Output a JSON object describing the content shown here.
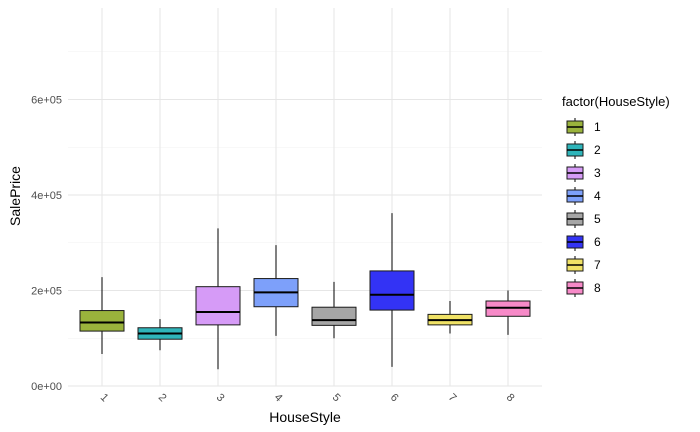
{
  "chart_data": {
    "type": "boxplot",
    "xlabel": "HouseStyle",
    "ylabel": "SalePrice",
    "ylim": [
      0,
      720000
    ],
    "grid": true,
    "legend_position": "right",
    "legend_title": "factor(HouseStyle)",
    "y_ticks": [
      {
        "value": 0,
        "label": "0e+00"
      },
      {
        "value": 200000,
        "label": "2e+05"
      },
      {
        "value": 400000,
        "label": "4e+05"
      },
      {
        "value": 600000,
        "label": "6e+05"
      }
    ],
    "categories": [
      "1",
      "2",
      "3",
      "4",
      "5",
      "6",
      "7",
      "8"
    ],
    "series": [
      {
        "name": "1",
        "color": "#9AB33C",
        "whisker_low": 67000,
        "q1": 115000,
        "median": 133000,
        "q3": 158000,
        "whisker_high": 228000
      },
      {
        "name": "2",
        "color": "#2FB5BA",
        "whisker_low": 75000,
        "q1": 98000,
        "median": 110000,
        "q3": 122000,
        "whisker_high": 140000
      },
      {
        "name": "3",
        "color": "#D69BF7",
        "whisker_low": 35000,
        "q1": 128000,
        "median": 155000,
        "q3": 208000,
        "whisker_high": 330000
      },
      {
        "name": "4",
        "color": "#7DA0FA",
        "whisker_low": 105000,
        "q1": 166000,
        "median": 196000,
        "q3": 225000,
        "whisker_high": 295000
      },
      {
        "name": "5",
        "color": "#A6A6A6",
        "whisker_low": 100000,
        "q1": 127000,
        "median": 138000,
        "q3": 165000,
        "whisker_high": 218000
      },
      {
        "name": "6",
        "color": "#3333F5",
        "whisker_low": 40000,
        "q1": 159000,
        "median": 191000,
        "q3": 241000,
        "whisker_high": 362000
      },
      {
        "name": "7",
        "color": "#F0E266",
        "whisker_low": 110000,
        "q1": 128000,
        "median": 138000,
        "q3": 150000,
        "whisker_high": 178000
      },
      {
        "name": "8",
        "color": "#F78AC8",
        "whisker_low": 107000,
        "q1": 146000,
        "median": 164000,
        "q3": 178000,
        "whisker_high": 200000
      }
    ]
  }
}
